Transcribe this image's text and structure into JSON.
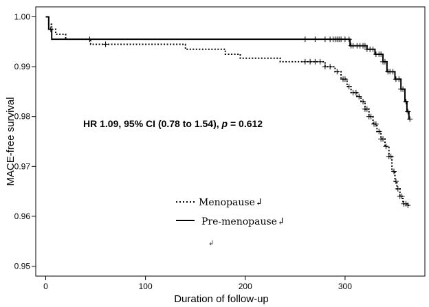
{
  "chart_data": {
    "type": "line",
    "xlabel": "Duration of follow-up",
    "ylabel": "MACE-free survival",
    "xlim": [
      -10,
      380
    ],
    "ylim": [
      0.948,
      1.002
    ],
    "xticks": [
      0,
      100,
      200,
      300
    ],
    "yticks": [
      0.95,
      0.96,
      0.97,
      0.98,
      0.99,
      1.0
    ],
    "ytick_labels": [
      "0.95",
      "0.96",
      "0.97",
      "0.98",
      "0.99",
      "1.00"
    ],
    "grid": false,
    "annotation": {
      "prefix": "HR 1.09, 95% CI (0.78 to 1.54), ",
      "p_symbol": "p",
      "suffix": " = 0.612"
    },
    "legend": {
      "position": "center",
      "items": [
        "Menopause↲",
        "Pre-menopause↲"
      ],
      "trailing_mark": "↲"
    },
    "series": [
      {
        "name": "Menopause",
        "style": "dotted",
        "steps": [
          [
            0,
            1.0
          ],
          [
            3,
            0.9985
          ],
          [
            6,
            0.9975
          ],
          [
            10,
            0.9965
          ],
          [
            20,
            0.9955
          ],
          [
            45,
            0.9945
          ],
          [
            140,
            0.9935
          ],
          [
            180,
            0.9925
          ],
          [
            195,
            0.9917
          ],
          [
            235,
            0.991
          ],
          [
            280,
            0.99
          ],
          [
            290,
            0.989
          ],
          [
            296,
            0.9875
          ],
          [
            302,
            0.986
          ],
          [
            306,
            0.9848
          ],
          [
            312,
            0.984
          ],
          [
            316,
            0.983
          ],
          [
            320,
            0.9815
          ],
          [
            324,
            0.98
          ],
          [
            328,
            0.9785
          ],
          [
            332,
            0.977
          ],
          [
            336,
            0.9755
          ],
          [
            340,
            0.974
          ],
          [
            344,
            0.972
          ],
          [
            347,
            0.969
          ],
          [
            350,
            0.967
          ],
          [
            352,
            0.9655
          ],
          [
            355,
            0.964
          ],
          [
            358,
            0.9625
          ],
          [
            362,
            0.9622
          ],
          [
            365,
            0.9622
          ]
        ],
        "censor": [
          44,
          60,
          260,
          265,
          270,
          275,
          280,
          285,
          292,
          298,
          300,
          304,
          308,
          311,
          314,
          318,
          320,
          322,
          324,
          326,
          329,
          331,
          334,
          336,
          338,
          341,
          344,
          346,
          349,
          351,
          353,
          355,
          357,
          359,
          361,
          363
        ]
      },
      {
        "name": "Pre-menopause",
        "style": "solid",
        "steps": [
          [
            0,
            1.0
          ],
          [
            3,
            0.9975
          ],
          [
            6,
            0.9955
          ],
          [
            300,
            0.9955
          ],
          [
            305,
            0.9942
          ],
          [
            322,
            0.9935
          ],
          [
            330,
            0.9925
          ],
          [
            338,
            0.991
          ],
          [
            342,
            0.989
          ],
          [
            350,
            0.9875
          ],
          [
            356,
            0.9855
          ],
          [
            360,
            0.983
          ],
          [
            362,
            0.981
          ],
          [
            364,
            0.9795
          ],
          [
            365,
            0.9795
          ]
        ],
        "censor": [
          5,
          260,
          270,
          280,
          285,
          288,
          290,
          292,
          294,
          296,
          300,
          304,
          306,
          308,
          312,
          315,
          318,
          320,
          322,
          325,
          328,
          331,
          334,
          336,
          338,
          340,
          343,
          345,
          348,
          351,
          354,
          356,
          358,
          361,
          363,
          365
        ]
      }
    ]
  }
}
